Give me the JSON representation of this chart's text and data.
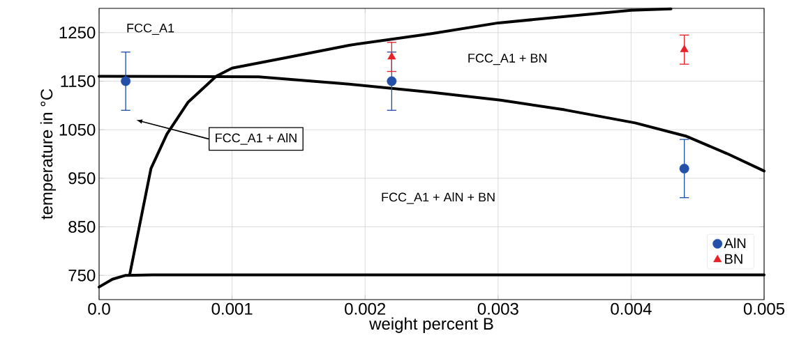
{
  "chart_data": {
    "type": "line",
    "xlabel": "weight percent B",
    "ylabel": "temperature in °C",
    "xlim": [
      0,
      0.005
    ],
    "ylim": [
      700,
      1300
    ],
    "xticks": [
      {
        "value": 0,
        "label": "0.0"
      },
      0.001,
      0.002,
      0.003,
      0.004,
      0.005
    ],
    "yticks": [
      750,
      850,
      950,
      1050,
      1150,
      1250
    ],
    "grid": true,
    "legend": "bottom right",
    "annotations": [
      "FCC_A1",
      "FCC_A1 + BN",
      "FCC_A1 + AlN + BN",
      "FCC_A1 + AlN"
    ],
    "series": [
      {
        "type": "line",
        "color": "#000000",
        "marker": "none",
        "x": [
          0.00023,
          0.0003,
          0.00039,
          0.00051,
          0.00067,
          0.00088,
          0.001,
          0.0014,
          0.00188,
          0.0025,
          0.003,
          0.0035,
          0.004,
          0.0043
        ],
        "values": [
          751,
          847,
          970,
          1041,
          1107,
          1160,
          1177,
          1198,
          1224,
          1248,
          1270,
          1283,
          1296,
          1299
        ]
      },
      {
        "type": "line",
        "color": "#000000",
        "marker": "none",
        "x": [
          0,
          0.0012,
          0.00188,
          0.0025,
          0.00302,
          0.0035,
          0.00403,
          0.00441,
          0.00472,
          0.005
        ],
        "values": [
          1160,
          1159,
          1144,
          1127,
          1111,
          1091,
          1064,
          1037,
          1001,
          965
        ]
      },
      {
        "type": "line",
        "color": "#000000",
        "marker": "none",
        "x": [
          0,
          0.0001,
          0.0002,
          0.0004,
          0.005
        ],
        "values": [
          726,
          742,
          750,
          751,
          751
        ]
      },
      {
        "type": "scatter",
        "name": "AlN",
        "color": "#2450a8",
        "marker": "circle",
        "x": [
          0.0002,
          0.0022,
          0.0044
        ],
        "values": [
          1150,
          1150,
          970
        ],
        "errors": [
          60,
          60,
          60
        ]
      },
      {
        "type": "scatter",
        "name": "BN",
        "color": "#e82028",
        "marker": "triangle",
        "x": [
          0.0022,
          0.0044
        ],
        "values": [
          1200,
          1215
        ],
        "errors": [
          30,
          30
        ]
      }
    ]
  }
}
